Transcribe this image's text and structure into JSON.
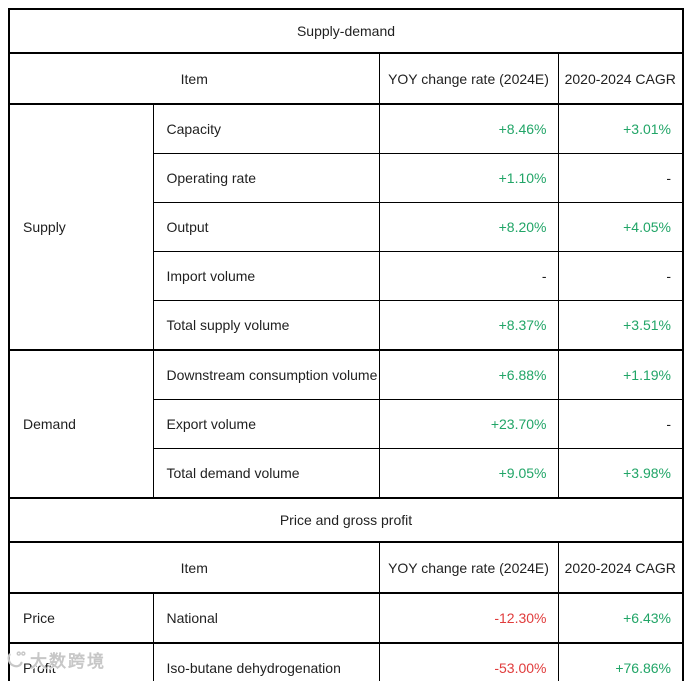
{
  "colors": {
    "positive": "#21a567",
    "negative": "#e03c3c",
    "ink": "#1f1f1f",
    "border": "#000000"
  },
  "sections": [
    {
      "title": "Supply-demand",
      "columns": [
        "Item",
        "YOY change rate (2024E)",
        "2020-2024 CAGR"
      ],
      "groups": [
        {
          "label": "Supply",
          "rows": [
            {
              "item": "Capacity",
              "values": [
                "+8.46%",
                "+3.01%"
              ]
            },
            {
              "item": "Operating rate",
              "values": [
                "+1.10%",
                "-"
              ]
            },
            {
              "item": "Output",
              "values": [
                "+8.20%",
                "+4.05%"
              ]
            },
            {
              "item": "Import volume",
              "values": [
                "-",
                "-"
              ]
            },
            {
              "item": "Total supply volume",
              "values": [
                "+8.37%",
                "+3.51%"
              ]
            }
          ]
        },
        {
          "label": "Demand",
          "rows": [
            {
              "item": "Downstream consumption volume",
              "values": [
                "+6.88%",
                "+1.19%"
              ]
            },
            {
              "item": "Export volume",
              "values": [
                "+23.70%",
                "-"
              ]
            },
            {
              "item": "Total demand volume",
              "values": [
                "+9.05%",
                "+3.98%"
              ]
            }
          ]
        }
      ]
    },
    {
      "title": "Price and gross profit",
      "columns": [
        "Item",
        "YOY change rate (2024E)",
        "2020-2024 CAGR"
      ],
      "groups": [
        {
          "label": "Price",
          "rows": [
            {
              "item": "National",
              "values": [
                "-12.30%",
                "+6.43%"
              ]
            }
          ]
        },
        {
          "label": "Profit",
          "rows": [
            {
              "item": "Iso-butane dehydrogenation",
              "values": [
                "-53.00%",
                "+76.86%"
              ]
            }
          ]
        }
      ]
    }
  ],
  "watermark": {
    "text": "大数跨境"
  }
}
